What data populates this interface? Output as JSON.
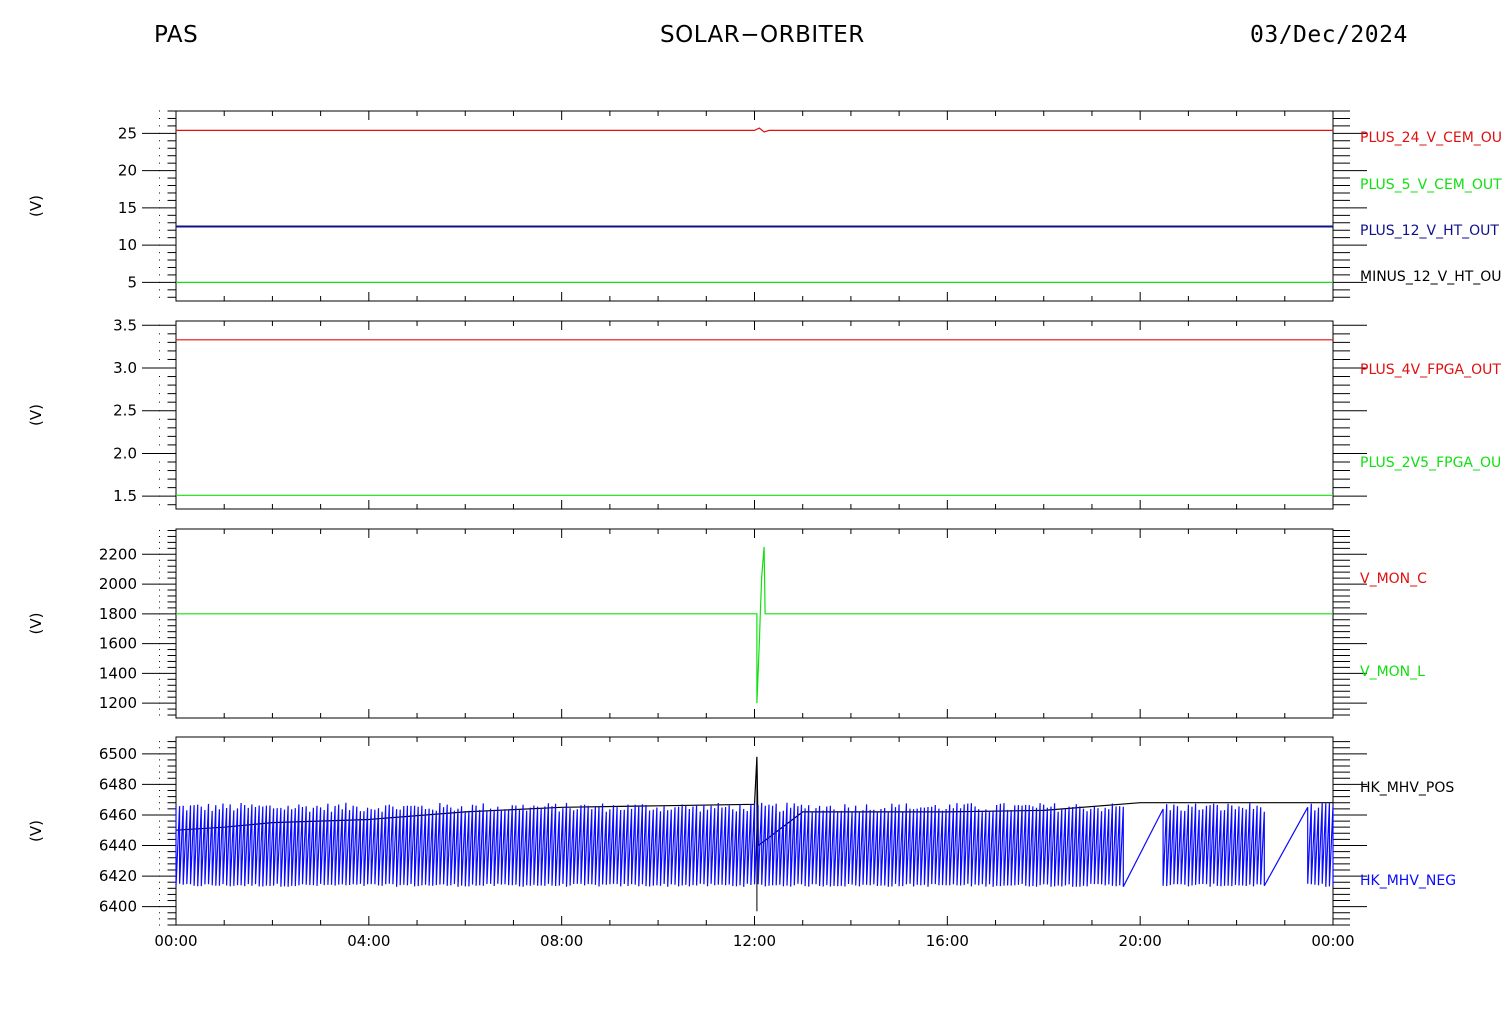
{
  "header": {
    "left": "PAS",
    "center": "SOLAR−ORBITER",
    "right": "03/Dec/2024"
  },
  "colors": {
    "red": "#e01010",
    "green": "#10e010",
    "navy": "#10108c",
    "blue": "#0a0aff",
    "black": "#000000"
  },
  "chart_data": [
    {
      "type": "line",
      "ylabel": "(V)",
      "ylim": [
        2.5,
        28
      ],
      "yticks": [
        5,
        10,
        15,
        20,
        25
      ],
      "x": [
        "00:00",
        "04:00",
        "08:00",
        "12:00",
        "16:00",
        "20:00",
        "00:00"
      ],
      "xrange_hours": [
        0,
        24
      ],
      "series": [
        {
          "name": "PLUS_24_V_CEM_OU",
          "color": "#e01010",
          "points": [
            [
              0,
              25.4
            ],
            [
              12,
              25.4
            ],
            [
              12.1,
              25.7
            ],
            [
              12.2,
              25.2
            ],
            [
              12.3,
              25.4
            ],
            [
              24,
              25.4
            ]
          ]
        },
        {
          "name": "PLUS_5_V_CEM_OUT",
          "color": "#10e010",
          "points": [
            [
              0,
              5.0
            ],
            [
              24,
              5.0
            ]
          ]
        },
        {
          "name": "PLUS_12_V_HT_OUT",
          "color": "#10108c",
          "points": [
            [
              0,
              12.5
            ],
            [
              24,
              12.5
            ]
          ]
        },
        {
          "name": "MINUS_12_V_HT_OU",
          "color": "#000000",
          "points": []
        }
      ]
    },
    {
      "type": "line",
      "ylabel": "(V)",
      "ylim": [
        1.35,
        3.55
      ],
      "yticks": [
        1.5,
        2.0,
        2.5,
        3.0,
        3.5
      ],
      "x": [
        "00:00",
        "04:00",
        "08:00",
        "12:00",
        "16:00",
        "20:00",
        "00:00"
      ],
      "xrange_hours": [
        0,
        24
      ],
      "series": [
        {
          "name": "PLUS_4V_FPGA_OUT",
          "color": "#e01010",
          "points": [
            [
              0,
              3.33
            ],
            [
              24,
              3.33
            ]
          ]
        },
        {
          "name": "PLUS_2V5_FPGA_OU",
          "color": "#10e010",
          "points": [
            [
              0,
              1.51
            ],
            [
              24,
              1.51
            ]
          ]
        }
      ]
    },
    {
      "type": "line",
      "ylabel": "(V)",
      "ylim": [
        1100,
        2370
      ],
      "yticks": [
        1200,
        1400,
        1600,
        1800,
        2000,
        2200
      ],
      "x": [
        "00:00",
        "04:00",
        "08:00",
        "12:00",
        "16:00",
        "20:00",
        "00:00"
      ],
      "xrange_hours": [
        0,
        24
      ],
      "series": [
        {
          "name": "V_MON_C",
          "color": "#e01010",
          "points": []
        },
        {
          "name": "V_MON_L",
          "color": "#10e010",
          "points": [
            [
              0,
              1800
            ],
            [
              12.05,
              1800
            ],
            [
              12.05,
              1200
            ],
            [
              12.1,
              1600
            ],
            [
              12.12,
              1800
            ],
            [
              12.15,
              2050
            ],
            [
              12.2,
              2250
            ],
            [
              12.22,
              1800
            ],
            [
              24,
              1800
            ]
          ]
        }
      ]
    },
    {
      "type": "line",
      "ylabel": "(V)",
      "ylim": [
        6388,
        6511
      ],
      "yticks": [
        6400,
        6420,
        6440,
        6460,
        6480,
        6500
      ],
      "x": [
        "00:00",
        "04:00",
        "08:00",
        "12:00",
        "16:00",
        "20:00",
        "00:00"
      ],
      "xrange_hours": [
        0,
        24
      ],
      "series": [
        {
          "name": "HK_MHV_POS",
          "color": "#000000",
          "points": [
            [
              0,
              6450
            ],
            [
              1,
              6452
            ],
            [
              2,
              6455
            ],
            [
              4,
              6457
            ],
            [
              6,
              6462
            ],
            [
              8,
              6465
            ],
            [
              10,
              6466
            ],
            [
              12,
              6467
            ],
            [
              12.05,
              6498
            ],
            [
              12.08,
              6440
            ],
            [
              13,
              6462
            ],
            [
              16,
              6462
            ],
            [
              18,
              6463
            ],
            [
              20,
              6468
            ],
            [
              22,
              6468
            ],
            [
              24,
              6468
            ]
          ]
        },
        {
          "name": "HK_MHV_NEG",
          "color": "#0a0aff",
          "points": []
        }
      ]
    }
  ]
}
